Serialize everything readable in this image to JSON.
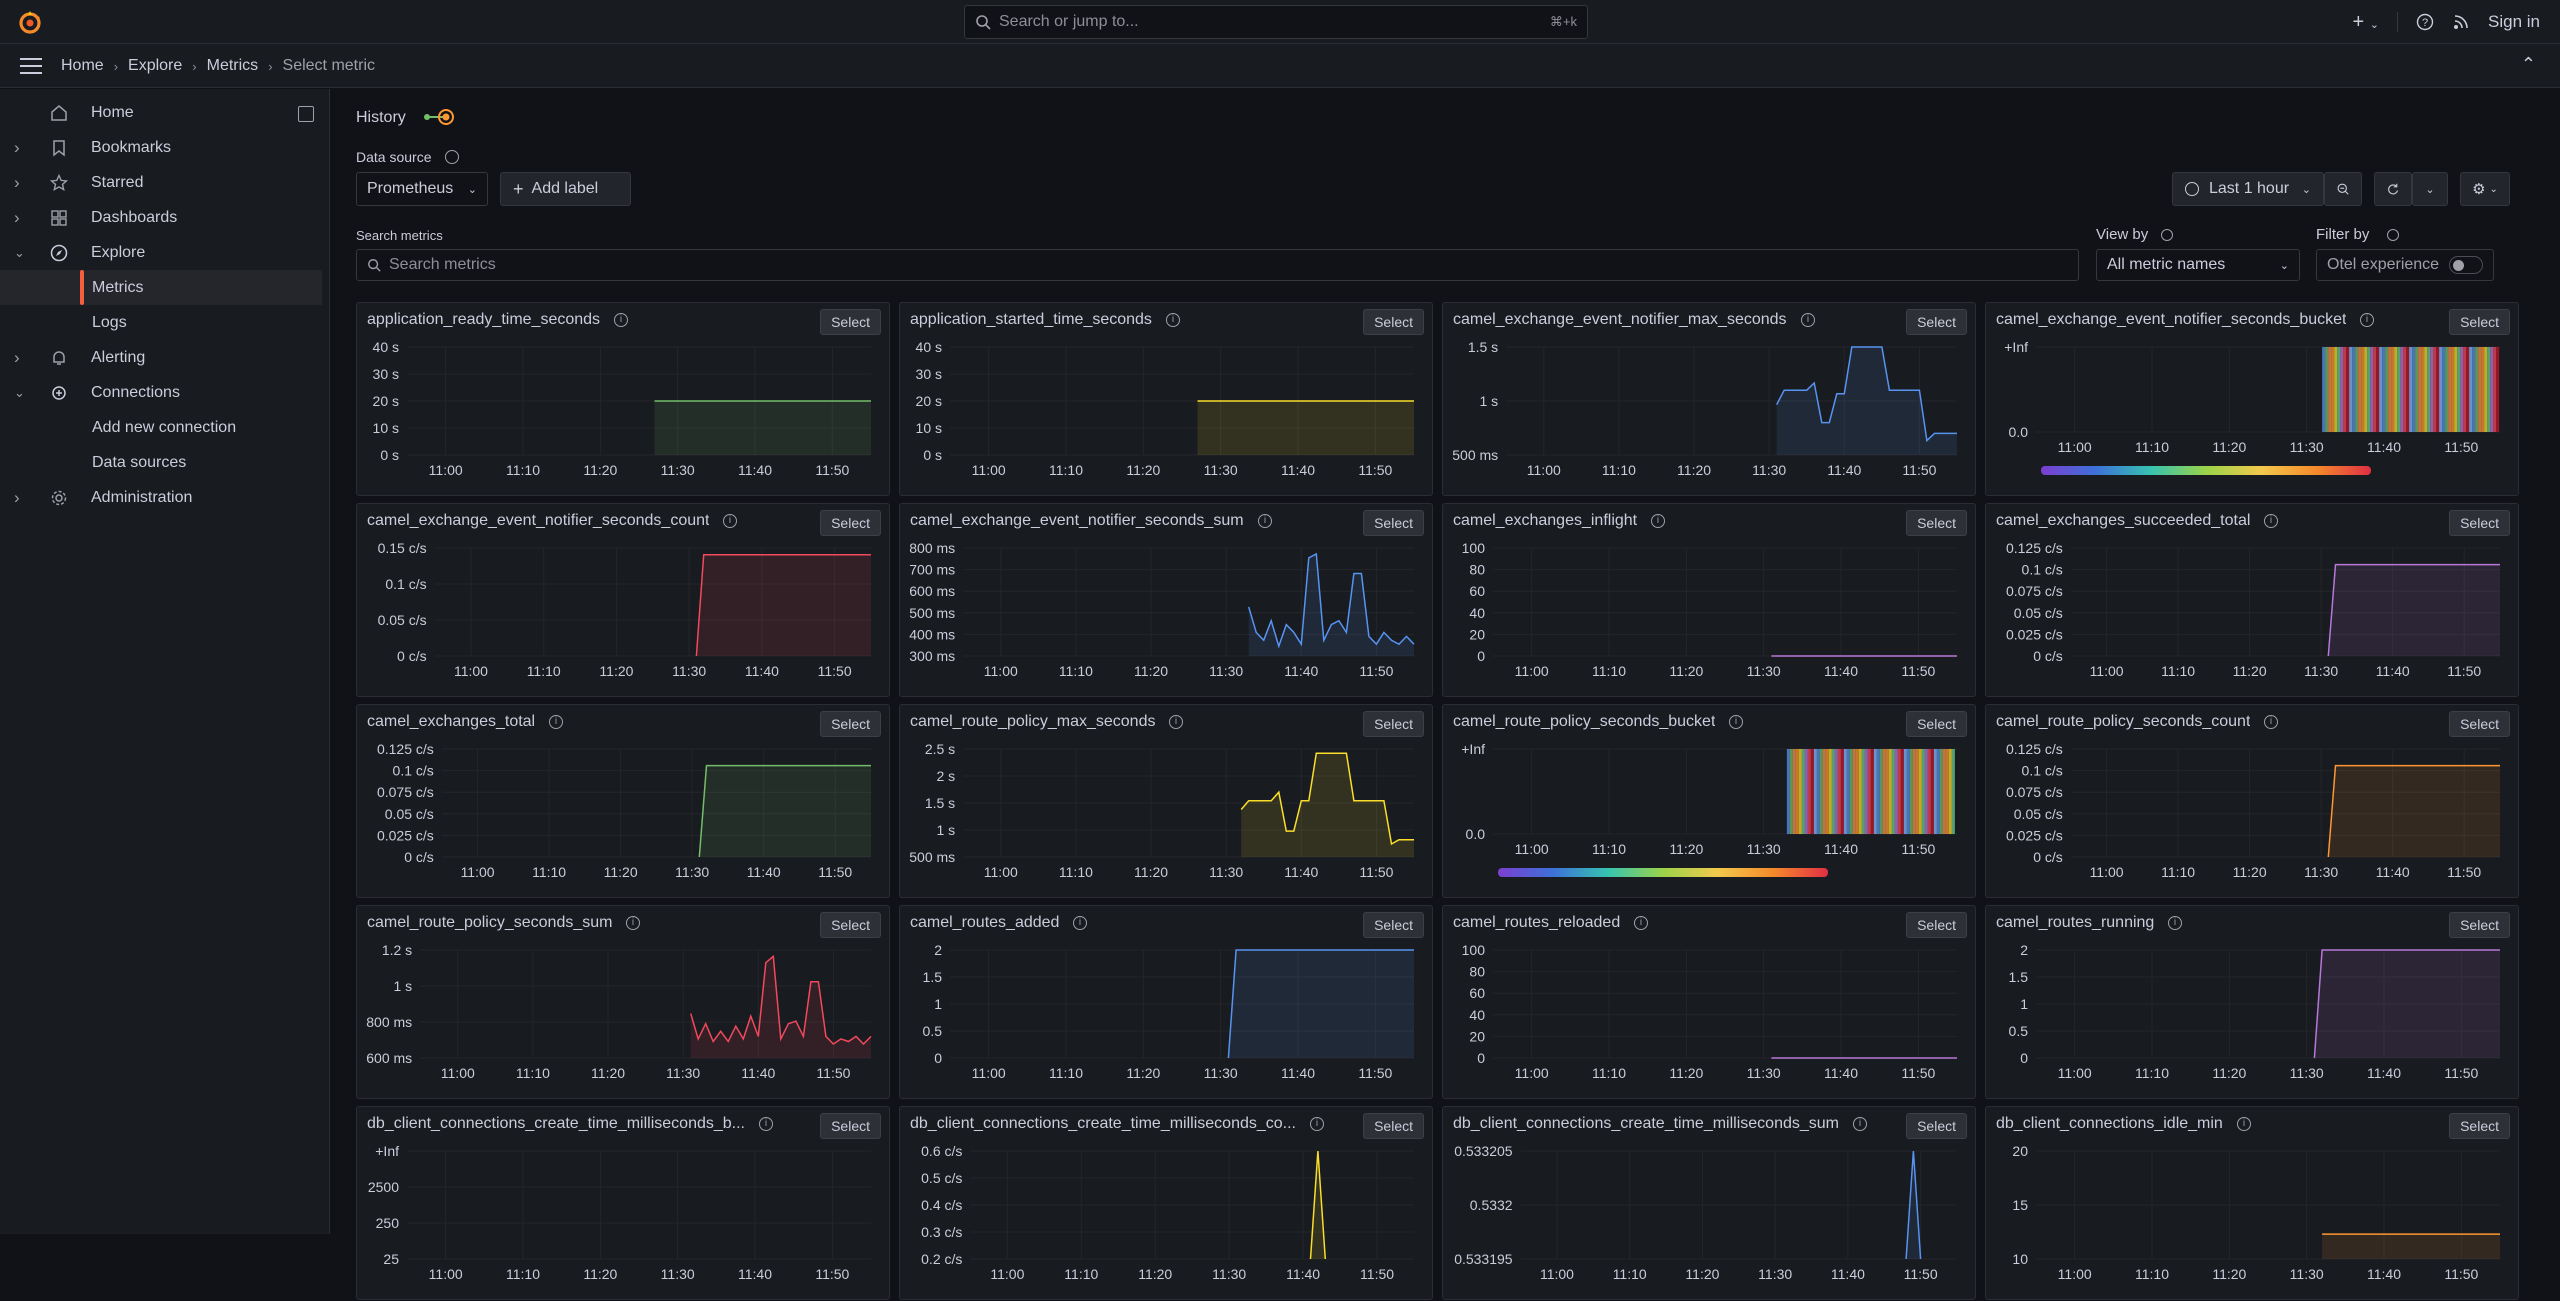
{
  "topbar": {
    "search_placeholder": "Search or jump to...",
    "search_shortcut": "⌘+k",
    "signin_label": "Sign in"
  },
  "breadcrumbs": [
    "Home",
    "Explore",
    "Metrics",
    "Select metric"
  ],
  "sidebar": {
    "items": [
      {
        "label": "Home",
        "icon": "home-icon",
        "expandable": false
      },
      {
        "label": "Bookmarks",
        "icon": "bookmark-icon",
        "expandable": true
      },
      {
        "label": "Starred",
        "icon": "star-icon",
        "expandable": true
      },
      {
        "label": "Dashboards",
        "icon": "apps-icon",
        "expandable": true
      },
      {
        "label": "Explore",
        "icon": "compass-icon",
        "expandable": true,
        "expanded": true
      },
      {
        "label": "Metrics",
        "sub": true,
        "active": true
      },
      {
        "label": "Logs",
        "sub": true
      },
      {
        "label": "Alerting",
        "icon": "bell-icon",
        "expandable": true
      },
      {
        "label": "Connections",
        "icon": "plug-icon",
        "expandable": true,
        "expanded": true
      },
      {
        "label": "Add new connection",
        "sub": true
      },
      {
        "label": "Data sources",
        "sub": true
      },
      {
        "label": "Administration",
        "icon": "cog-icon",
        "expandable": true
      }
    ]
  },
  "controls": {
    "history_label": "History",
    "datasource_label": "Data source",
    "datasource_value": "Prometheus",
    "add_label": "Add label",
    "time_range": "Last 1 hour",
    "search_metrics_label": "Search metrics",
    "search_metrics_placeholder": "Search metrics",
    "view_by_label": "View by",
    "view_by_value": "All metric names",
    "filter_by_label": "Filter by",
    "otel_label": "Otel experience",
    "select_label": "Select"
  },
  "colors": {
    "green": "#73bf69",
    "yellow": "#fade2a",
    "blue": "#5794f2",
    "red": "#f2495c",
    "purple": "#b877d9",
    "orange": "#ff9830",
    "accent": "#f55f3e"
  },
  "x_ticks": [
    "11:00",
    "11:10",
    "11:20",
    "11:30",
    "11:40",
    "11:50"
  ],
  "chart_data": [
    {
      "title": "application_ready_time_seconds",
      "type": "area",
      "color": "green",
      "yticks": [
        "40 s",
        "30 s",
        "20 s",
        "10 s",
        "0 s"
      ],
      "ymin": 0,
      "ymax": 40,
      "x": [
        0,
        31,
        32,
        60
      ],
      "y": [
        null,
        null,
        20,
        20
      ]
    },
    {
      "title": "application_started_time_seconds",
      "type": "area",
      "color": "yellow",
      "yticks": [
        "40 s",
        "30 s",
        "20 s",
        "10 s",
        "0 s"
      ],
      "ymin": 0,
      "ymax": 40,
      "x": [
        0,
        31,
        32,
        60
      ],
      "y": [
        null,
        null,
        20,
        20
      ]
    },
    {
      "title": "camel_exchange_event_notifier_max_seconds",
      "type": "area",
      "color": "blue",
      "yticks": [
        "1.5 s",
        "1 s",
        "500 ms"
      ],
      "ymin": 0.2,
      "ymax": 1.7,
      "x": [
        36,
        37,
        40,
        41,
        42,
        43,
        44,
        45,
        46,
        47,
        48,
        50,
        51,
        52,
        53,
        55,
        56,
        57,
        58,
        59,
        60
      ],
      "y": [
        0.9,
        1.1,
        1.1,
        1.2,
        0.65,
        0.65,
        1.05,
        1.05,
        1.7,
        1.7,
        1.7,
        1.7,
        1.1,
        1.1,
        1.1,
        1.1,
        0.4,
        0.5,
        0.5,
        0.5,
        0.5
      ]
    },
    {
      "title": "camel_exchange_event_notifier_seconds_bucket",
      "type": "heatmap",
      "yticks": [
        "+Inf",
        "0.0"
      ],
      "x_start": 37,
      "x_end": 60
    },
    {
      "title": "camel_exchange_event_notifier_seconds_count",
      "type": "area",
      "color": "red",
      "yticks": [
        "0.15 c/s",
        "0.1 c/s",
        "0.05 c/s",
        "0 c/s"
      ],
      "ymin": 0,
      "ymax": 0.16,
      "x": [
        36,
        37,
        60
      ],
      "y": [
        0,
        0.15,
        0.15
      ]
    },
    {
      "title": "camel_exchange_event_notifier_seconds_sum",
      "type": "area",
      "color": "blue",
      "yticks": [
        "800 ms",
        "700 ms",
        "600 ms",
        "500 ms",
        "400 ms",
        "300 ms"
      ],
      "ymin": 300,
      "ymax": 850,
      "x": [
        38,
        39,
        40,
        41,
        42,
        43,
        44,
        45,
        46,
        47,
        48,
        49,
        50,
        51,
        52,
        53,
        54,
        55,
        56,
        57,
        58,
        59,
        60
      ],
      "y": [
        550,
        420,
        380,
        480,
        350,
        460,
        420,
        360,
        800,
        820,
        380,
        460,
        480,
        420,
        720,
        720,
        400,
        360,
        420,
        380,
        360,
        400,
        360
      ]
    },
    {
      "title": "camel_exchanges_inflight",
      "type": "area",
      "color": "purple",
      "yticks": [
        "100",
        "80",
        "60",
        "40",
        "20",
        "0"
      ],
      "ymin": 0,
      "ymax": 100,
      "x": [
        36,
        60
      ],
      "y": [
        0,
        0
      ]
    },
    {
      "title": "camel_exchanges_succeeded_total",
      "type": "area",
      "color": "purple",
      "yticks": [
        "0.125 c/s",
        "0.1 c/s",
        "0.075 c/s",
        "0.05 c/s",
        "0.025 c/s",
        "0 c/s"
      ],
      "ymin": 0,
      "ymax": 0.13,
      "x": [
        36,
        37,
        60
      ],
      "y": [
        0,
        0.11,
        0.11
      ]
    },
    {
      "title": "camel_exchanges_total",
      "type": "area",
      "color": "green",
      "yticks": [
        "0.125 c/s",
        "0.1 c/s",
        "0.075 c/s",
        "0.05 c/s",
        "0.025 c/s",
        "0 c/s"
      ],
      "ymin": 0,
      "ymax": 0.13,
      "x": [
        36,
        37,
        60
      ],
      "y": [
        0,
        0.11,
        0.11
      ]
    },
    {
      "title": "camel_route_policy_max_seconds",
      "type": "area",
      "color": "yellow",
      "yticks": [
        "2.5 s",
        "2 s",
        "1.5 s",
        "1 s",
        "500 ms"
      ],
      "ymin": 0.3,
      "ymax": 2.8,
      "x": [
        37,
        38,
        41,
        42,
        43,
        44,
        45,
        46,
        47,
        48,
        50,
        51,
        52,
        53,
        55,
        56,
        57,
        58,
        59,
        60
      ],
      "y": [
        1.4,
        1.6,
        1.6,
        1.8,
        0.9,
        0.9,
        1.6,
        1.6,
        2.7,
        2.7,
        2.7,
        2.7,
        1.6,
        1.6,
        1.6,
        1.6,
        0.6,
        0.7,
        0.7,
        0.7
      ]
    },
    {
      "title": "camel_route_policy_seconds_bucket",
      "type": "heatmap",
      "yticks": [
        "+Inf",
        "0.0"
      ],
      "x_start": 38,
      "x_end": 60
    },
    {
      "title": "camel_route_policy_seconds_count",
      "type": "area",
      "color": "orange",
      "yticks": [
        "0.125 c/s",
        "0.1 c/s",
        "0.075 c/s",
        "0.05 c/s",
        "0.025 c/s",
        "0 c/s"
      ],
      "ymin": 0,
      "ymax": 0.13,
      "x": [
        36,
        37,
        60
      ],
      "y": [
        0,
        0.11,
        0.11
      ]
    },
    {
      "title": "camel_route_policy_seconds_sum",
      "type": "area",
      "color": "red",
      "yticks": [
        "1.2 s",
        "1 s",
        "800 ms",
        "600 ms"
      ],
      "ymin": 0.45,
      "ymax": 1.3,
      "x": [
        36,
        37,
        38,
        39,
        40,
        41,
        42,
        43,
        44,
        45,
        46,
        47,
        48,
        49,
        50,
        51,
        52,
        53,
        54,
        55,
        56,
        57,
        58,
        59,
        60
      ],
      "y": [
        0.8,
        0.6,
        0.72,
        0.58,
        0.66,
        0.58,
        0.7,
        0.6,
        0.78,
        0.62,
        1.2,
        1.25,
        0.6,
        0.72,
        0.74,
        0.62,
        1.05,
        1.05,
        0.62,
        0.56,
        0.6,
        0.58,
        0.62,
        0.56,
        0.62
      ]
    },
    {
      "title": "camel_routes_added",
      "type": "area",
      "color": "blue",
      "yticks": [
        "2",
        "1.5",
        "1",
        "0.5",
        "0"
      ],
      "ymin": 0,
      "ymax": 2,
      "x": [
        36,
        37,
        60
      ],
      "y": [
        0,
        2,
        2
      ]
    },
    {
      "title": "camel_routes_reloaded",
      "type": "area",
      "color": "purple",
      "yticks": [
        "100",
        "80",
        "60",
        "40",
        "20",
        "0"
      ],
      "ymin": 0,
      "ymax": 100,
      "x": [
        36,
        60
      ],
      "y": [
        0,
        0
      ]
    },
    {
      "title": "camel_routes_running",
      "type": "area",
      "color": "purple",
      "yticks": [
        "2",
        "1.5",
        "1",
        "0.5",
        "0"
      ],
      "ymin": 0,
      "ymax": 2,
      "x": [
        36,
        37,
        60
      ],
      "y": [
        0,
        2,
        2
      ]
    },
    {
      "title": "db_client_connections_create_time_milliseconds_b...",
      "type": "area",
      "color": "red",
      "yticks": [
        "+Inf",
        "2500",
        "250",
        "25"
      ],
      "ymin": 0,
      "ymax": 4,
      "x": [],
      "y": []
    },
    {
      "title": "db_client_connections_create_time_milliseconds_co...",
      "type": "area",
      "color": "yellow",
      "yticks": [
        "0.6 c/s",
        "0.5 c/s",
        "0.4 c/s",
        "0.3 c/s",
        "0.2 c/s"
      ],
      "ymin": 0.2,
      "ymax": 0.6,
      "x": [
        46,
        47,
        48
      ],
      "y": [
        0.2,
        0.6,
        0.2
      ]
    },
    {
      "title": "db_client_connections_create_time_milliseconds_sum",
      "type": "area",
      "color": "blue",
      "yticks": [
        "0.533205",
        "0.5332",
        "0.533195"
      ],
      "ymin": 0.53319,
      "ymax": 0.53321,
      "x": [
        53,
        54,
        55
      ],
      "y": [
        0.53319,
        0.53321,
        0.53319
      ]
    },
    {
      "title": "db_client_connections_idle_min",
      "type": "area",
      "color": "orange",
      "yticks": [
        "20",
        "15",
        "10"
      ],
      "ymin": 7,
      "ymax": 20,
      "x": [
        37,
        60
      ],
      "y": [
        10,
        10
      ]
    }
  ]
}
